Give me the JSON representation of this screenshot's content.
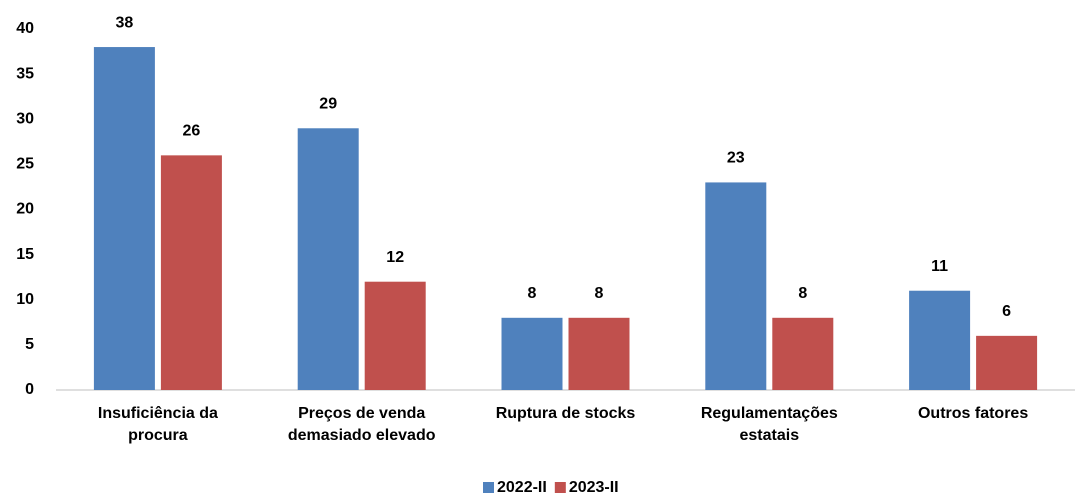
{
  "chart_data": {
    "type": "bar",
    "categories": [
      "Insuficiência da\nprocura",
      "Preços de venda\ndemasiado elevado",
      "Ruptura de stocks",
      "Regulamentações\nestatais",
      "Outros fatores"
    ],
    "series": [
      {
        "name": "2022-II",
        "color": "#4f81bd",
        "values": [
          38,
          29,
          8,
          23,
          11
        ]
      },
      {
        "name": "2023-II",
        "color": "#c0504d",
        "values": [
          26,
          12,
          8,
          8,
          6
        ]
      }
    ],
    "ylim": [
      0,
      40
    ],
    "yticks": [
      0,
      5,
      10,
      15,
      20,
      25,
      30,
      35,
      40
    ],
    "grid": false,
    "legend": "bottom"
  }
}
